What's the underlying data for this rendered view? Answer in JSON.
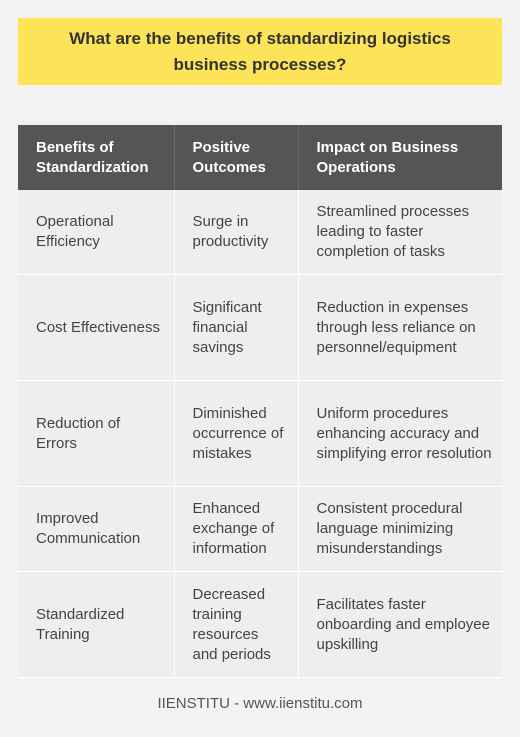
{
  "title": "What are the benefits of standardizing logistics business processes?",
  "table": {
    "headers": [
      "Benefits of Standardization",
      "Positive Outcomes",
      "Impact on Business Operations"
    ],
    "rows": [
      [
        "Operational Efficiency",
        "Surge in productivity",
        "Streamlined processes leading to faster completion of tasks"
      ],
      [
        "Cost Effectiveness",
        "Significant financial savings",
        "Reduction in expenses through less reliance on personnel/equipment"
      ],
      [
        "Reduction of Errors",
        "Diminished occurrence of mistakes",
        "Uniform procedures enhancing accuracy and simplifying error resolution"
      ],
      [
        "Improved Communication",
        "Enhanced exchange of information",
        "Consistent procedural language minimizing misunderstandings"
      ],
      [
        "Standardized Training",
        "Decreased training resources and periods",
        "Facilitates faster onboarding and employee upskilling"
      ]
    ]
  },
  "footer": "IIENSTITU - www.iienstitu.com",
  "colors": {
    "title_bg": "#fde357",
    "header_bg": "#555555",
    "body_bg": "#f3f3f3"
  }
}
